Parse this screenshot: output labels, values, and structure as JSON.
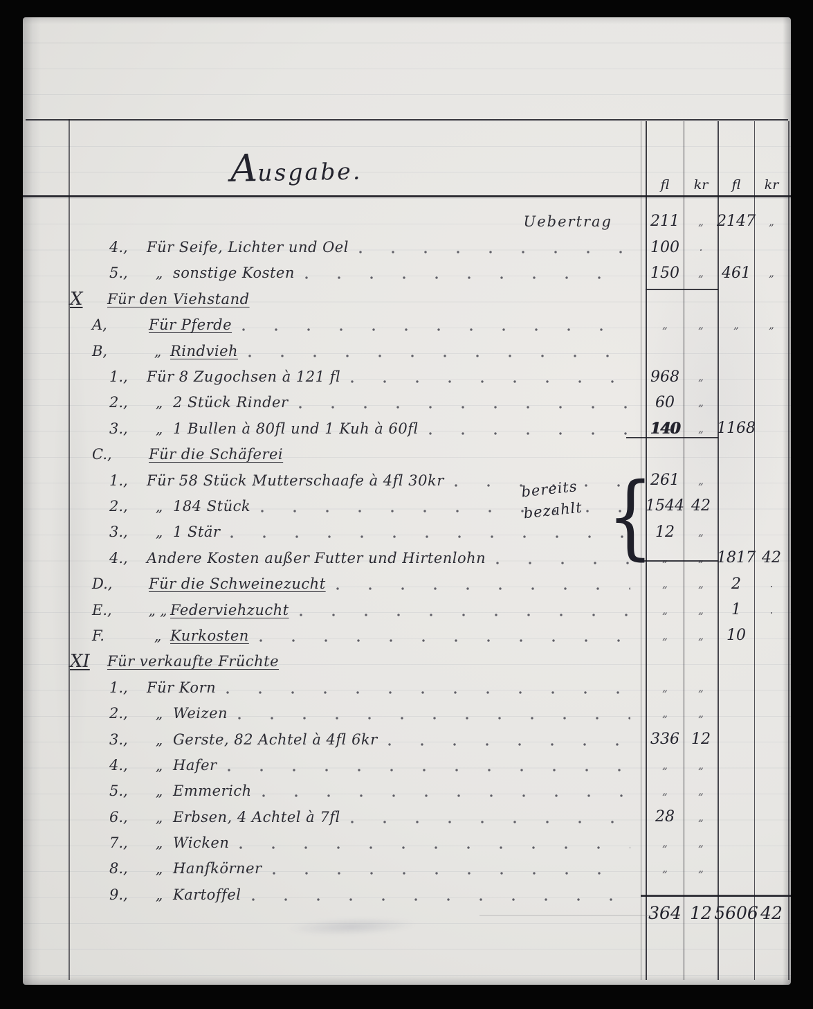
{
  "document": {
    "title": "Ausgabe.",
    "annotation": {
      "line1": "bereits",
      "line2": "bezahlt"
    }
  },
  "columns": [
    "fl",
    "kr",
    "fl",
    "kr"
  ],
  "colors": {
    "ink": "#2b2b33",
    "paper": "#e7e6e3",
    "background": "#050505"
  },
  "rows": [
    {
      "type": "carry",
      "text": "Uebertrag",
      "c1": "211",
      "c2": "„",
      "c3": "2147",
      "c4": "„"
    },
    {
      "type": "item",
      "num": "4.,",
      "pre": "",
      "text": "Für Seife, Lichter und Oel",
      "dots": true,
      "c1": "100",
      "c2": "."
    },
    {
      "type": "item",
      "num": "5.,",
      "pre": "„",
      "text": "sonstige Kosten",
      "dots": true,
      "c1": "150",
      "c2": "„",
      "c3": "461",
      "c4": "„"
    },
    {
      "type": "roman",
      "num": "X",
      "text": "Für den Viehstand",
      "underline": true
    },
    {
      "type": "section",
      "num": "A,",
      "pre": "",
      "text": "Für Pferde",
      "underline": true,
      "dots": true,
      "c1": "„",
      "c2": "„",
      "c3": "„",
      "c4": "„"
    },
    {
      "type": "section",
      "num": "B,",
      "pre": "„",
      "text": "Rindvieh",
      "underline": true,
      "dots": true
    },
    {
      "type": "item",
      "num": "1.,",
      "pre": "",
      "text": "Für 8 Zugochsen à 121 fl",
      "dots": true,
      "c1": "968",
      "c2": "„"
    },
    {
      "type": "item",
      "num": "2.,",
      "pre": "„",
      "text": "2 Stück Rinder",
      "dots": true,
      "c1": "60",
      "c2": "„"
    },
    {
      "type": "item",
      "num": "3.,",
      "pre": "„",
      "text": "1 Bullen à 80fl und 1 Kuh à 60fl",
      "dots": true,
      "c1": "140",
      "c2": "„",
      "c3": "1168",
      "heavy": true
    },
    {
      "type": "section",
      "num": "C.,",
      "pre": "",
      "text": "Für die Schäferei",
      "underline": true
    },
    {
      "type": "item",
      "num": "1.,",
      "pre": "",
      "text": "Für 58 Stück Mutterschaafe à 4fl 30kr",
      "dots": true,
      "c1": "261",
      "c2": "„"
    },
    {
      "type": "item",
      "num": "2.,",
      "pre": "„",
      "text": "184 Stück",
      "dots": true,
      "c1": "1544",
      "c2": "42"
    },
    {
      "type": "item",
      "num": "3.,",
      "pre": "„",
      "text": "1 Stär",
      "dots": true,
      "c1": "12",
      "c2": "„"
    },
    {
      "type": "item",
      "num": "4.,",
      "pre": "",
      "text": "Andere Kosten außer Futter und Hirtenlohn",
      "dots": true,
      "c1": "„",
      "c2": "„",
      "c3": "1817",
      "c4": "42"
    },
    {
      "type": "section",
      "num": "D.,",
      "pre": "",
      "text": "Für die Schweinezucht",
      "underline": true,
      "dots": true,
      "c1": "„",
      "c2": "„",
      "c3": "2",
      "c4": "."
    },
    {
      "type": "section",
      "num": "E.,",
      "pre": "„ „",
      "text": "Federviehzucht",
      "underline": true,
      "dots": true,
      "c1": "„",
      "c2": "„",
      "c3": "1",
      "c4": "."
    },
    {
      "type": "section",
      "num": "F.",
      "pre": "„",
      "text": "Kurkosten",
      "underline": true,
      "dots": true,
      "c1": "„",
      "c2": "„",
      "c3": "10"
    },
    {
      "type": "roman",
      "num": "XI",
      "text": "Für verkaufte Früchte",
      "underline": true
    },
    {
      "type": "item",
      "num": "1.,",
      "pre": "",
      "text": "Für Korn",
      "dots": true,
      "c1": "„",
      "c2": "„"
    },
    {
      "type": "item",
      "num": "2.,",
      "pre": "„",
      "text": "Weizen",
      "dots": true,
      "c1": "„",
      "c2": "„"
    },
    {
      "type": "item",
      "num": "3.,",
      "pre": "„",
      "text": "Gerste, 82 Achtel à 4fl 6kr",
      "dots": true,
      "c1": "336",
      "c2": "12"
    },
    {
      "type": "item",
      "num": "4.,",
      "pre": "„",
      "text": "Hafer",
      "dots": true,
      "c1": "„",
      "c2": "„"
    },
    {
      "type": "item",
      "num": "5.,",
      "pre": "„",
      "text": "Emmerich",
      "dots": true,
      "c1": "„",
      "c2": "„"
    },
    {
      "type": "item",
      "num": "6.,",
      "pre": "„",
      "text": "Erbsen, 4 Achtel à 7fl",
      "dots": true,
      "c1": "28",
      "c2": "„"
    },
    {
      "type": "item",
      "num": "7.,",
      "pre": "„",
      "text": "Wicken",
      "dots": true,
      "c1": "„",
      "c2": "„"
    },
    {
      "type": "item",
      "num": "8.,",
      "pre": "„",
      "text": "Hanfkörner",
      "dots": true,
      "c1": "„",
      "c2": "„"
    },
    {
      "type": "item",
      "num": "9.,",
      "pre": "„",
      "text": "Kartoffel",
      "dots": true
    }
  ],
  "totals": {
    "c1": "364",
    "c2": "12",
    "c3": "5606",
    "c4": "42"
  }
}
